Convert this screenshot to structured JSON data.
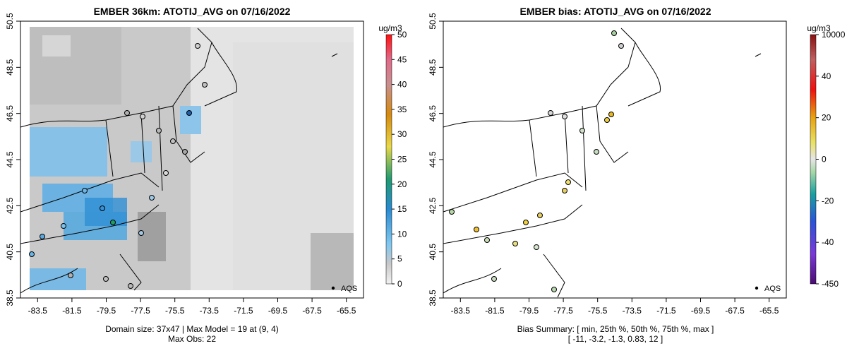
{
  "chart_data": [
    {
      "type": "map",
      "title": "EMBER 36km: ATOTIJ_AVG on 07/16/2022",
      "x_ticks": [
        "-83.5",
        "-81.5",
        "-79.5",
        "-77.5",
        "-75.5",
        "-73.5",
        "-71.5",
        "-69.5",
        "-67.5",
        "-65.5"
      ],
      "y_ticks": [
        "38.5",
        "40.5",
        "42.5",
        "44.5",
        "46.5",
        "48.5",
        "50.5"
      ],
      "xlim": [
        -84.5,
        -64.5
      ],
      "ylim": [
        38.5,
        50.5
      ],
      "colorbar": {
        "unit": "ug/m3",
        "ticks": [
          "0",
          "5",
          "10",
          "15",
          "20",
          "25",
          "30",
          "35",
          "40",
          "45",
          "50"
        ],
        "range": [
          0,
          50
        ]
      },
      "legend": {
        "label": "AQS",
        "placement": "bottom-right"
      },
      "footer": [
        "Domain size: 37x47 | Max Model = 19 at (9, 4)",
        "Max Obs: 22"
      ]
    },
    {
      "type": "map",
      "title": "EMBER bias: ATOTIJ_AVG on 07/16/2022",
      "x_ticks": [
        "-83.5",
        "-81.5",
        "-79.5",
        "-77.5",
        "-75.5",
        "-73.5",
        "-71.5",
        "-69.5",
        "-67.5",
        "-65.5"
      ],
      "y_ticks": [
        "38.5",
        "40.5",
        "42.5",
        "44.5",
        "46.5",
        "48.5",
        "50.5"
      ],
      "xlim": [
        -84.5,
        -64.5
      ],
      "ylim": [
        38.5,
        50.5
      ],
      "colorbar": {
        "unit": "ug/m3",
        "ticks": [
          "10000",
          "40",
          "20",
          "0",
          "-20",
          "-40",
          "-450"
        ]
      },
      "legend": {
        "label": "AQS",
        "placement": "bottom-right"
      },
      "footer": [
        "Bias Summary: [ min, 25th %, 50th %, 75th %, max ]",
        "[ -11,  -3.2,  -1.3,  0.83,  12 ]"
      ]
    }
  ]
}
